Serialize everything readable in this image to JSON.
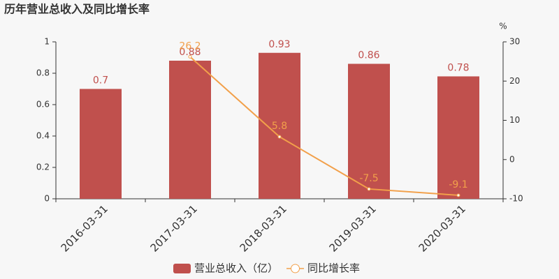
{
  "chart_data": {
    "type": "bar-line",
    "title": "历年营业总收入及同比增长率",
    "y2label": "%",
    "categories": [
      "2016-03-31",
      "2017-03-31",
      "2018-03-31",
      "2019-03-31",
      "2020-03-31"
    ],
    "series": [
      {
        "name": "营业总收入（亿）",
        "type": "bar",
        "color": "#c0504d",
        "values": [
          0.7,
          0.88,
          0.93,
          0.86,
          0.78
        ]
      },
      {
        "name": "同比增长率",
        "type": "line",
        "axis": "y2",
        "color": "#f2a04a",
        "values": [
          null,
          26.2,
          5.8,
          -7.5,
          -9.1
        ]
      }
    ],
    "ylim": [
      0,
      1
    ],
    "yticks": [
      0,
      0.2,
      0.4,
      0.6,
      0.8,
      1
    ],
    "y2lim": [
      -10,
      30
    ],
    "y2ticks": [
      -10,
      0,
      10,
      20,
      30
    ],
    "grid": false
  }
}
